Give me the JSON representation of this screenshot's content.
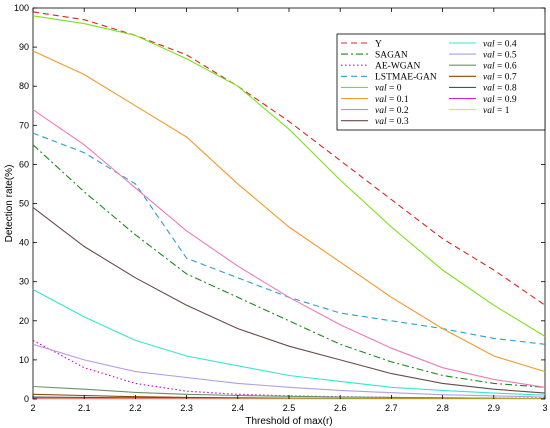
{
  "chart_data": {
    "type": "line",
    "xlabel": "Threshold of max(r)",
    "ylabel": "Detection rate(%)",
    "xlim": [
      2,
      3
    ],
    "ylim": [
      0,
      100
    ],
    "xticks": [
      "2",
      "2.1",
      "2.2",
      "2.3",
      "2.4",
      "2.5",
      "2.6",
      "2.7",
      "2.8",
      "2.9",
      "3"
    ],
    "yticks": [
      "0",
      "10",
      "20",
      "30",
      "40",
      "50",
      "60",
      "70",
      "80",
      "90",
      "100"
    ],
    "grid": false,
    "legend_position": "top-right",
    "x": [
      2,
      2.1,
      2.2,
      2.3,
      2.4,
      2.5,
      2.6,
      2.7,
      2.8,
      2.9,
      3
    ],
    "series": [
      {
        "name": "Y",
        "style": "dashed",
        "color": "#d62728",
        "values": [
          99,
          97,
          93,
          88,
          80,
          71,
          61,
          51,
          41,
          33,
          24
        ]
      },
      {
        "name": "SAGAN",
        "style": "dashdot",
        "color": "#1a8a1a",
        "values": [
          65,
          53,
          42,
          32,
          26,
          20,
          14,
          9.5,
          6,
          4,
          3
        ]
      },
      {
        "name": "AE-WGAN",
        "style": "dotted",
        "color": "#cc00cc",
        "values": [
          15,
          8,
          4,
          2,
          1.2,
          0.8,
          0.6,
          0.4,
          0.3,
          0.2,
          0.2
        ]
      },
      {
        "name": "LSTMAE-GAN",
        "style": "dashed",
        "color": "#2aa0d0",
        "values": [
          68,
          63,
          55,
          36,
          31,
          26,
          22,
          20,
          18,
          15.5,
          14
        ]
      },
      {
        "name": "val = 0",
        "label_var": "val",
        "label_val": "0",
        "style": "solid",
        "color": "#7fe01a",
        "values": [
          98,
          96,
          93,
          87,
          80,
          69,
          56,
          44,
          33,
          24,
          16
        ]
      },
      {
        "name": "val = 0.1",
        "label_var": "val",
        "label_val": "0.1",
        "style": "solid",
        "color": "#f29b2a",
        "values": [
          89,
          83,
          75,
          67,
          55,
          44,
          35,
          26,
          18,
          11,
          7
        ]
      },
      {
        "name": "val = 0.2",
        "label_var": "val",
        "label_val": "0.2",
        "style": "solid",
        "color": "#f07ab4",
        "values": [
          74,
          65,
          54,
          43,
          34,
          26,
          19,
          13,
          8,
          5,
          3
        ]
      },
      {
        "name": "val = 0.3",
        "label_var": "val",
        "label_val": "0.3",
        "style": "solid",
        "color": "#6b4a4a",
        "values": [
          49,
          39,
          31,
          24,
          18,
          13.5,
          10,
          6.5,
          4,
          2.5,
          1.5
        ]
      },
      {
        "name": "val = 0.4",
        "label_var": "val",
        "label_val": "0.4",
        "style": "solid",
        "color": "#33e8d0",
        "values": [
          28,
          21,
          15,
          11,
          8.5,
          6,
          4.5,
          3,
          2.2,
          1.5,
          1
        ]
      },
      {
        "name": "val = 0.5",
        "label_var": "val",
        "label_val": "0.5",
        "style": "solid",
        "color": "#b49be8",
        "values": [
          14,
          10,
          7,
          5.5,
          4,
          3,
          2.2,
          1.6,
          1.1,
          0.8,
          0.5
        ]
      },
      {
        "name": "val = 0.6",
        "label_var": "val",
        "label_val": "0.6",
        "style": "solid",
        "color": "#6b8f6b",
        "values": [
          3.2,
          2.5,
          1.7,
          1.2,
          0.9,
          0.7,
          0.5,
          0.4,
          0.3,
          0.2,
          0.1
        ]
      },
      {
        "name": "val = 0.7",
        "label_var": "val",
        "label_val": "0.7",
        "style": "solid",
        "color": "#8a4a00",
        "values": [
          1.2,
          0.9,
          0.6,
          0.4,
          0.3,
          0.2,
          0.15,
          0.1,
          0.1,
          0.05,
          0.05
        ]
      },
      {
        "name": "val = 0.8",
        "label_var": "val",
        "label_val": "0.8",
        "style": "solid",
        "color": "#3a5a5a",
        "values": [
          0.5,
          0.4,
          0.3,
          0.2,
          0.15,
          0.1,
          0.1,
          0.05,
          0.05,
          0.05,
          0
        ]
      },
      {
        "name": "val = 0.9",
        "label_var": "val",
        "label_val": "0.9",
        "style": "solid",
        "color": "#d81fd8",
        "values": [
          0.2,
          0.15,
          0.1,
          0.1,
          0.05,
          0.05,
          0,
          0,
          0,
          0,
          0
        ]
      },
      {
        "name": "val = 1",
        "label_var": "val",
        "label_val": "1",
        "style": "solid",
        "color": "#f5e21a",
        "values": [
          0,
          0,
          0,
          0,
          0,
          0,
          0,
          0,
          0,
          0,
          0
        ]
      }
    ]
  }
}
